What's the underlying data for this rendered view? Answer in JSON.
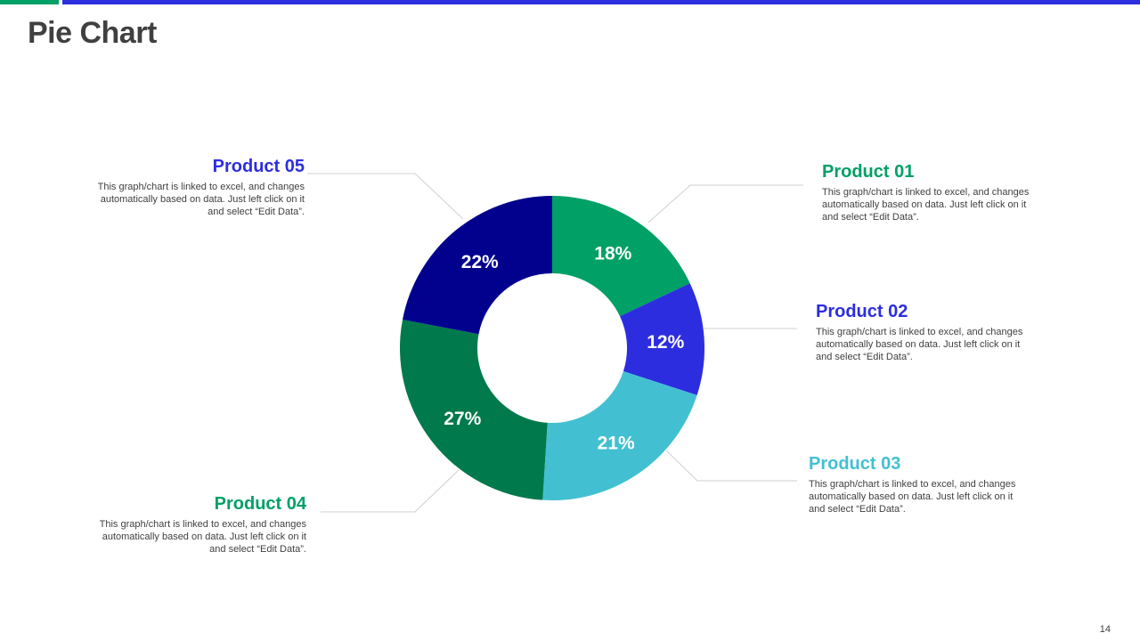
{
  "page": {
    "title": "Pie Chart",
    "page_number": "14"
  },
  "colors": {
    "top_bar_green": "#00A066",
    "top_bar_blue": "#2D2DE0",
    "title_text": "#404040",
    "leader_line": "#D0D0D0"
  },
  "chart_data": {
    "type": "pie",
    "variant": "donut",
    "title": "Pie Chart",
    "start_angle_deg": 0,
    "direction": "clockwise",
    "slices": [
      {
        "label": "Product 01",
        "value": 18,
        "display": "18%",
        "color": "#00A066"
      },
      {
        "label": "Product 02",
        "value": 12,
        "display": "12%",
        "color": "#2D2DE0"
      },
      {
        "label": "Product 03",
        "value": 21,
        "display": "21%",
        "color": "#42C0D2"
      },
      {
        "label": "Product 04",
        "value": 27,
        "display": "27%",
        "color": "#00794C"
      },
      {
        "label": "Product 05",
        "value": 22,
        "display": "22%",
        "color": "#02018E"
      }
    ]
  },
  "labels": [
    {
      "title": "Product 01",
      "color": "#00A066",
      "desc": "This graph/chart is linked to excel, and changes automatically based on data. Just left click on it and select “Edit Data”."
    },
    {
      "title": "Product 02",
      "color": "#2D2DE0",
      "desc": "This graph/chart is linked to excel, and changes automatically based on data. Just left click on it and select “Edit Data”."
    },
    {
      "title": "Product 03",
      "color": "#42C0D2",
      "desc": "This graph/chart is linked to excel, and changes automatically based on data. Just left click on it and select “Edit Data”."
    },
    {
      "title": "Product 04",
      "color": "#00A066",
      "desc": "This graph/chart is linked to excel, and changes automatically based on data. Just left click on it and select “Edit Data”."
    },
    {
      "title": "Product 05",
      "color": "#2D2DE0",
      "desc": "This graph/chart is linked to excel, and changes automatically based on data. Just left click on it and select “Edit Data”."
    }
  ]
}
